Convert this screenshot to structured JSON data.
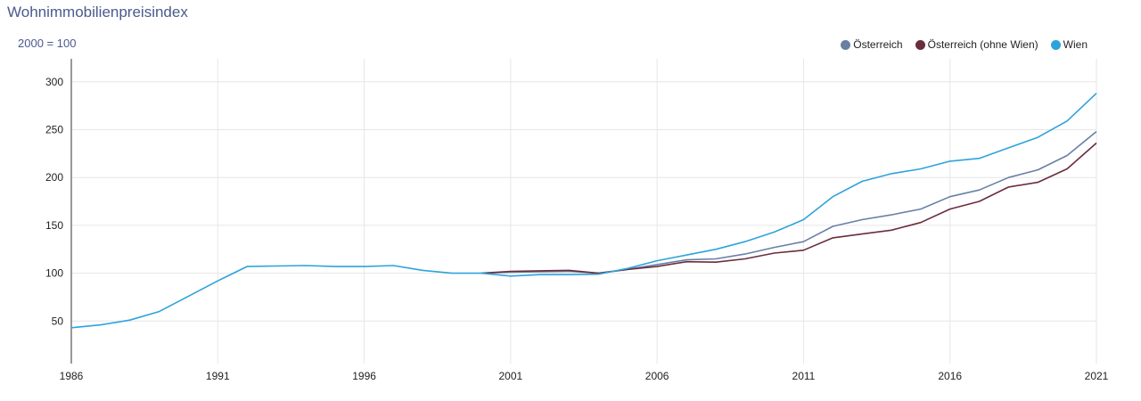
{
  "chart_data": {
    "type": "line",
    "title": "Wohnimmobilienpreisindex",
    "unit_label": "2000 = 100",
    "xlim": [
      1986,
      2021
    ],
    "ylim": [
      0,
      320
    ],
    "x_ticks": [
      1986,
      1991,
      1996,
      2001,
      2006,
      2011,
      2016,
      2021
    ],
    "y_ticks": [
      50,
      100,
      150,
      200,
      250,
      300
    ],
    "grid": true,
    "legend_position": "top-right",
    "series": [
      {
        "name": "Österreich",
        "color": "#6a7fa6",
        "x": [
          2000,
          2001,
          2002,
          2003,
          2004,
          2005,
          2006,
          2007,
          2008,
          2009,
          2010,
          2011,
          2012,
          2013,
          2014,
          2015,
          2016,
          2017,
          2018,
          2019,
          2020,
          2021
        ],
        "values": [
          100,
          101,
          101.5,
          102,
          100,
          104,
          109,
          114,
          115,
          120,
          127,
          133,
          149,
          156,
          161,
          167,
          180,
          187,
          200,
          208,
          223,
          248
        ]
      },
      {
        "name": "Österreich (ohne Wien)",
        "color": "#6b2d3c",
        "x": [
          2000,
          2001,
          2002,
          2003,
          2004,
          2005,
          2006,
          2007,
          2008,
          2009,
          2010,
          2011,
          2012,
          2013,
          2014,
          2015,
          2016,
          2017,
          2018,
          2019,
          2020,
          2021
        ],
        "values": [
          100,
          102,
          102.5,
          103,
          100,
          104,
          107,
          112,
          111.5,
          115,
          121,
          124,
          137,
          141,
          145,
          153,
          167,
          175,
          190,
          195,
          209,
          236
        ]
      },
      {
        "name": "Wien",
        "color": "#2ea3db",
        "x": [
          1986,
          1987,
          1988,
          1989,
          1990,
          1991,
          1992,
          1993,
          1994,
          1995,
          1996,
          1997,
          1998,
          1999,
          2000,
          2001,
          2002,
          2003,
          2004,
          2005,
          2006,
          2007,
          2008,
          2009,
          2010,
          2011,
          2012,
          2013,
          2014,
          2015,
          2016,
          2017,
          2018,
          2019,
          2020,
          2021
        ],
        "values": [
          43,
          46,
          51,
          60,
          76,
          92,
          107,
          107.5,
          108,
          107,
          107,
          108,
          103,
          100,
          100,
          97,
          98.5,
          98.5,
          99,
          105,
          113,
          119,
          125,
          133,
          143,
          156,
          180,
          196,
          204,
          209,
          217,
          220,
          231,
          242,
          259,
          288
        ]
      }
    ]
  }
}
